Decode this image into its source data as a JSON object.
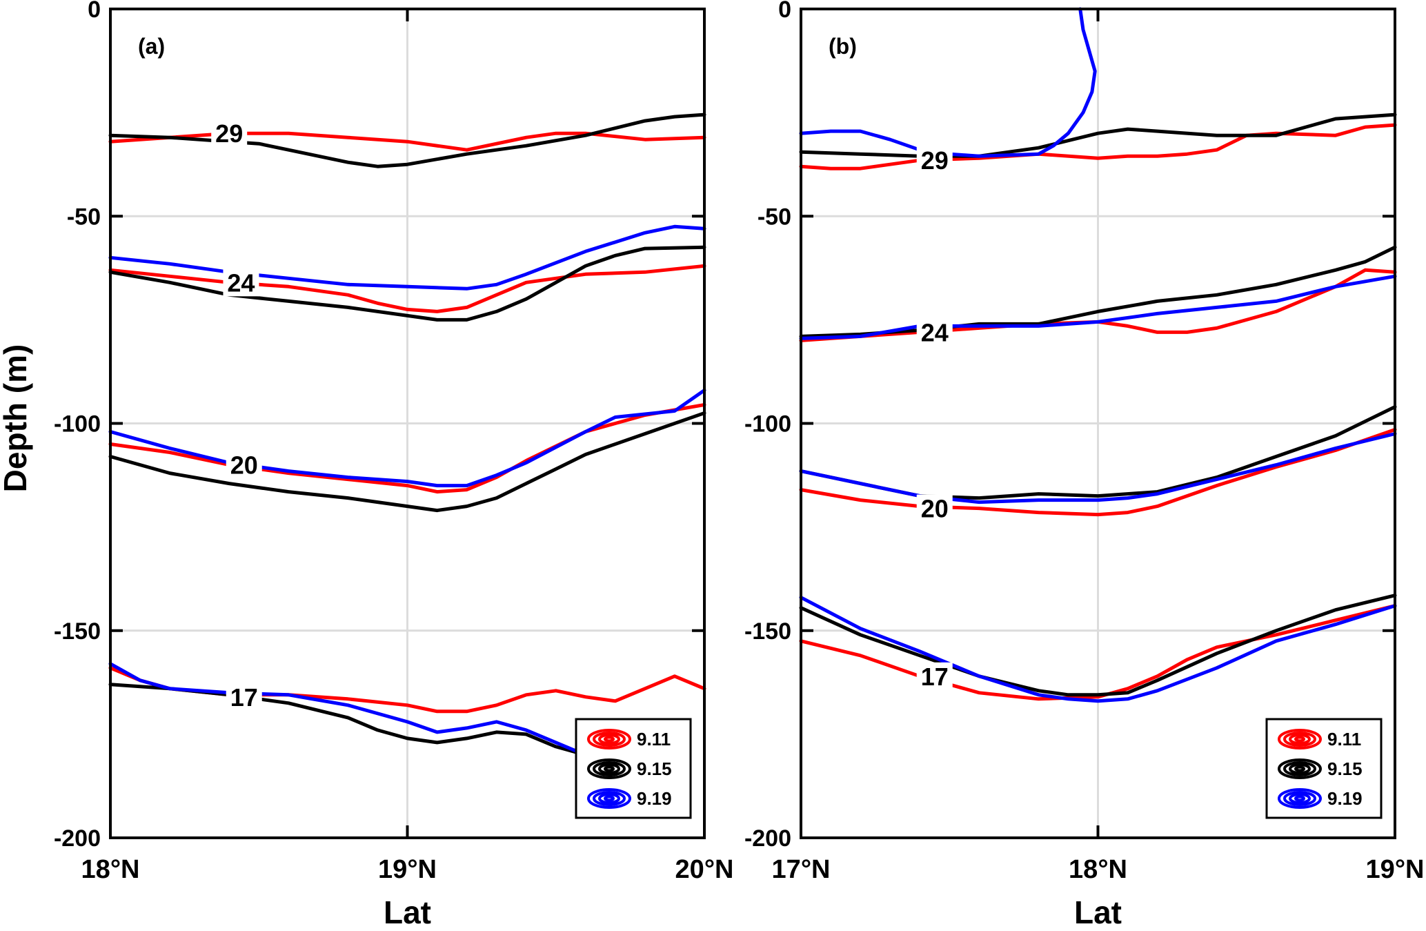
{
  "ylabel": "Depth (m)",
  "colors": {
    "9.11": "#ff0000",
    "9.15": "#000000",
    "9.19": "#0000ff"
  },
  "chart_data": [
    {
      "type": "line",
      "panel": "(a)",
      "xlabel": "Lat",
      "ylabel": "Depth (m)",
      "xlim": [
        18,
        20
      ],
      "ylim": [
        -200,
        0
      ],
      "xticks": [
        18,
        19,
        20
      ],
      "xtick_labels": [
        "18°N",
        "19°N",
        "20°N"
      ],
      "yticks": [
        0,
        -50,
        -100,
        -150,
        -200
      ],
      "ytick_labels": [
        "0",
        "-50",
        "-100",
        "-150",
        "-200"
      ],
      "grid": true,
      "legend": [
        "9.11",
        "9.15",
        "9.19"
      ],
      "legend_position": "bottom-right",
      "contour_labels": [
        {
          "text": "29",
          "x": 18.4,
          "y": -30
        },
        {
          "text": "24",
          "x": 18.44,
          "y": -66
        },
        {
          "text": "20",
          "x": 18.45,
          "y": -110
        },
        {
          "text": "17",
          "x": 18.45,
          "y": -166
        }
      ],
      "series": [
        {
          "name": "9.11",
          "isotherm": 29,
          "x": [
            18.0,
            18.2,
            18.4,
            18.6,
            18.8,
            19.0,
            19.2,
            19.4,
            19.5,
            19.6,
            19.8,
            20.0
          ],
          "y": [
            -32,
            -31,
            -30,
            -30,
            -31,
            -32,
            -34,
            -31,
            -30,
            -30,
            -31.5,
            -31
          ]
        },
        {
          "name": "9.15",
          "isotherm": 29,
          "x": [
            18.0,
            18.2,
            18.4,
            18.5,
            18.6,
            18.8,
            18.9,
            19.0,
            19.2,
            19.4,
            19.6,
            19.8,
            19.9,
            20.0
          ],
          "y": [
            -30.5,
            -31,
            -32,
            -32.5,
            -34,
            -37,
            -38,
            -37.5,
            -35,
            -33,
            -30.5,
            -27,
            -26,
            -25.5
          ]
        },
        {
          "name": "9.11",
          "isotherm": 24,
          "x": [
            18.0,
            18.2,
            18.4,
            18.6,
            18.8,
            18.9,
            19.0,
            19.1,
            19.2,
            19.3,
            19.4,
            19.6,
            19.8,
            20.0
          ],
          "y": [
            -63,
            -64.5,
            -66,
            -67,
            -69,
            -71,
            -72.5,
            -73,
            -72,
            -69,
            -66,
            -64,
            -63.5,
            -62
          ]
        },
        {
          "name": "9.15",
          "isotherm": 24,
          "x": [
            18.0,
            18.2,
            18.4,
            18.6,
            18.8,
            19.0,
            19.1,
            19.2,
            19.3,
            19.4,
            19.5,
            19.6,
            19.7,
            19.8,
            20.0
          ],
          "y": [
            -63.5,
            -66,
            -69,
            -70.5,
            -72,
            -74,
            -75,
            -75,
            -73,
            -70,
            -66,
            -62,
            -59.5,
            -57.8,
            -57.5
          ]
        },
        {
          "name": "9.19",
          "isotherm": 24,
          "x": [
            18.0,
            18.2,
            18.4,
            18.6,
            18.8,
            19.0,
            19.2,
            19.3,
            19.4,
            19.6,
            19.8,
            19.9,
            20.0
          ],
          "y": [
            -60,
            -61.5,
            -63.5,
            -65,
            -66.5,
            -67,
            -67.5,
            -66.5,
            -64,
            -58.5,
            -54,
            -52.5,
            -53
          ]
        },
        {
          "name": "9.11",
          "isotherm": 20,
          "x": [
            18.0,
            18.2,
            18.4,
            18.6,
            18.8,
            19.0,
            19.1,
            19.2,
            19.3,
            19.4,
            19.6,
            19.8,
            20.0
          ],
          "y": [
            -105,
            -107,
            -110,
            -112,
            -113.5,
            -115,
            -116.5,
            -116,
            -113,
            -109,
            -102,
            -98,
            -95.5
          ]
        },
        {
          "name": "9.15",
          "isotherm": 20,
          "x": [
            18.0,
            18.2,
            18.4,
            18.6,
            18.8,
            18.9,
            19.0,
            19.1,
            19.2,
            19.3,
            19.4,
            19.5,
            19.6,
            19.8,
            20.0
          ],
          "y": [
            -108,
            -112,
            -114.5,
            -116.5,
            -118,
            -119,
            -120,
            -121,
            -120,
            -118,
            -114.5,
            -111,
            -107.5,
            -102.5,
            -97.5
          ]
        },
        {
          "name": "9.19",
          "isotherm": 20,
          "x": [
            18.0,
            18.2,
            18.4,
            18.6,
            18.8,
            19.0,
            19.1,
            19.2,
            19.3,
            19.4,
            19.6,
            19.7,
            19.9,
            20.0
          ],
          "y": [
            -102,
            -106,
            -109.5,
            -111.5,
            -113,
            -114,
            -115,
            -115,
            -112.5,
            -109.5,
            -102,
            -98.5,
            -97,
            -92
          ]
        },
        {
          "name": "9.11",
          "isotherm": 17,
          "x": [
            18.0,
            18.1,
            18.2,
            18.4,
            18.6,
            18.8,
            19.0,
            19.1,
            19.2,
            19.3,
            19.4,
            19.5,
            19.6,
            19.7,
            19.8,
            19.9,
            20.0
          ],
          "y": [
            -159,
            -162,
            -164,
            -165.5,
            -165.5,
            -166.5,
            -168,
            -169.5,
            -169.5,
            -168,
            -165.5,
            -164.5,
            -166,
            -167,
            -164,
            -161,
            -164
          ]
        },
        {
          "name": "9.15",
          "isotherm": 17,
          "x": [
            18.0,
            18.2,
            18.4,
            18.5,
            18.6,
            18.8,
            18.9,
            19.0,
            19.1,
            19.2,
            19.3,
            19.4,
            19.5,
            19.6
          ],
          "y": [
            -163,
            -164,
            -165.5,
            -166.5,
            -167.5,
            -171,
            -174,
            -176,
            -177,
            -176,
            -174.5,
            -175,
            -178,
            -180
          ]
        },
        {
          "name": "9.19",
          "isotherm": 17,
          "x": [
            18.0,
            18.1,
            18.2,
            18.4,
            18.6,
            18.8,
            19.0,
            19.1,
            19.2,
            19.3,
            19.4,
            19.5,
            19.6
          ],
          "y": [
            -158,
            -162,
            -164,
            -165,
            -165.5,
            -168,
            -172,
            -174.5,
            -173.5,
            -172,
            -174,
            -177,
            -180
          ]
        }
      ]
    },
    {
      "type": "line",
      "panel": "(b)",
      "xlabel": "Lat",
      "ylabel": "",
      "xlim": [
        17,
        19
      ],
      "ylim": [
        -200,
        0
      ],
      "xticks": [
        17,
        18,
        19
      ],
      "xtick_labels": [
        "17°N",
        "18°N",
        "19°N"
      ],
      "yticks": [
        0,
        -50,
        -100,
        -150,
        -200
      ],
      "ytick_labels": [
        "0",
        "-50",
        "-100",
        "-150",
        "-200"
      ],
      "grid": true,
      "legend": [
        "9.11",
        "9.15",
        "9.19"
      ],
      "legend_position": "bottom-right",
      "contour_labels": [
        {
          "text": "29",
          "x": 17.45,
          "y": -36.5
        },
        {
          "text": "24",
          "x": 17.45,
          "y": -78
        },
        {
          "text": "20",
          "x": 17.45,
          "y": -120.5
        },
        {
          "text": "17",
          "x": 17.45,
          "y": -161
        }
      ],
      "series": [
        {
          "name": "9.11",
          "isotherm": 29,
          "x": [
            17.0,
            17.1,
            17.2,
            17.3,
            17.4,
            17.6,
            17.8,
            18.0,
            18.1,
            18.2,
            18.3,
            18.4,
            18.5,
            18.6,
            18.8,
            18.9,
            19.0
          ],
          "y": [
            -38,
            -38.5,
            -38.5,
            -37.5,
            -36.5,
            -36,
            -35,
            -36,
            -35.5,
            -35.5,
            -35,
            -34,
            -30.5,
            -30,
            -30.5,
            -28.5,
            -28
          ]
        },
        {
          "name": "9.15",
          "isotherm": 29,
          "x": [
            17.0,
            17.2,
            17.4,
            17.6,
            17.8,
            18.0,
            18.1,
            18.2,
            18.4,
            18.6,
            18.7,
            18.8,
            18.9,
            19.0
          ],
          "y": [
            -34.5,
            -35,
            -35.5,
            -35.5,
            -33.5,
            -30,
            -29,
            -29.5,
            -30.5,
            -30.5,
            -28.5,
            -26.5,
            -26,
            -25.5
          ]
        },
        {
          "name": "9.19",
          "isotherm": 29,
          "x": [
            17.0,
            17.1,
            17.2,
            17.3,
            17.4,
            17.5,
            17.6,
            17.8,
            17.85,
            17.9,
            17.95,
            17.98,
            17.99,
            17.97,
            17.95,
            17.94
          ],
          "y": [
            -30,
            -29.5,
            -29.5,
            -31.5,
            -34,
            -35,
            -35.5,
            -35,
            -33,
            -30,
            -25,
            -20,
            -15,
            -10,
            -5,
            0
          ]
        },
        {
          "name": "9.11",
          "isotherm": 24,
          "x": [
            17.0,
            17.2,
            17.4,
            17.6,
            17.8,
            18.0,
            18.1,
            18.2,
            18.3,
            18.4,
            18.6,
            18.8,
            18.9,
            19.0
          ],
          "y": [
            -80,
            -79,
            -78,
            -77,
            -76,
            -75.5,
            -76.5,
            -78,
            -78,
            -77,
            -73,
            -67,
            -63,
            -63.5
          ]
        },
        {
          "name": "9.15",
          "isotherm": 24,
          "x": [
            17.0,
            17.2,
            17.4,
            17.6,
            17.8,
            18.0,
            18.2,
            18.4,
            18.6,
            18.8,
            18.9,
            19.0
          ],
          "y": [
            -79,
            -78.5,
            -77.5,
            -76,
            -76,
            -73,
            -70.5,
            -69,
            -66.5,
            -63,
            -61,
            -57.5
          ]
        },
        {
          "name": "9.19",
          "isotherm": 24,
          "x": [
            17.0,
            17.2,
            17.4,
            17.6,
            17.8,
            18.0,
            18.2,
            18.4,
            18.6,
            18.8,
            19.0
          ],
          "y": [
            -79.5,
            -79,
            -76.5,
            -76.5,
            -76.5,
            -75.5,
            -73.5,
            -72,
            -70.5,
            -67,
            -64.5
          ]
        },
        {
          "name": "9.11",
          "isotherm": 20,
          "x": [
            17.0,
            17.2,
            17.4,
            17.6,
            17.8,
            18.0,
            18.1,
            18.2,
            18.4,
            18.6,
            18.8,
            19.0
          ],
          "y": [
            -116,
            -118.5,
            -120,
            -120.5,
            -121.5,
            -122,
            -121.5,
            -120,
            -115,
            -110.5,
            -106.5,
            -101.5
          ]
        },
        {
          "name": "9.15",
          "isotherm": 20,
          "x": [
            17.0,
            17.2,
            17.4,
            17.6,
            17.8,
            18.0,
            18.2,
            18.4,
            18.6,
            18.8,
            19.0
          ],
          "y": [
            -111.5,
            -114.5,
            -117.5,
            -118,
            -117,
            -117.5,
            -116.5,
            -113,
            -108,
            -103,
            -96
          ]
        },
        {
          "name": "9.19",
          "isotherm": 20,
          "x": [
            17.0,
            17.2,
            17.4,
            17.6,
            17.8,
            18.0,
            18.1,
            18.2,
            18.4,
            18.6,
            18.8,
            19.0
          ],
          "y": [
            -111.5,
            -114.5,
            -117.5,
            -119,
            -118.5,
            -118.5,
            -118,
            -117,
            -113.5,
            -110,
            -106,
            -102.5
          ]
        },
        {
          "name": "9.11",
          "isotherm": 17,
          "x": [
            17.0,
            17.2,
            17.4,
            17.5,
            17.6,
            17.8,
            18.0,
            18.1,
            18.2,
            18.3,
            18.4,
            18.6,
            18.8,
            19.0
          ],
          "y": [
            -152.5,
            -156,
            -161,
            -163,
            -165,
            -166.5,
            -166,
            -164,
            -161,
            -157,
            -154,
            -151,
            -147.5,
            -144
          ]
        },
        {
          "name": "9.15",
          "isotherm": 17,
          "x": [
            17.0,
            17.2,
            17.4,
            17.6,
            17.8,
            17.9,
            18.0,
            18.1,
            18.2,
            18.4,
            18.6,
            18.8,
            19.0
          ],
          "y": [
            -144.5,
            -151,
            -156,
            -161,
            -164.5,
            -165.5,
            -165.5,
            -165,
            -162,
            -155.5,
            -150,
            -145,
            -141.5
          ]
        },
        {
          "name": "9.19",
          "isotherm": 17,
          "x": [
            17.0,
            17.2,
            17.4,
            17.6,
            17.8,
            17.9,
            18.0,
            18.1,
            18.2,
            18.4,
            18.6,
            18.8,
            19.0
          ],
          "y": [
            -142,
            -149.5,
            -155,
            -161,
            -165.5,
            -166.5,
            -167,
            -166.5,
            -164.5,
            -159,
            -152.5,
            -148.5,
            -144
          ]
        }
      ]
    }
  ]
}
